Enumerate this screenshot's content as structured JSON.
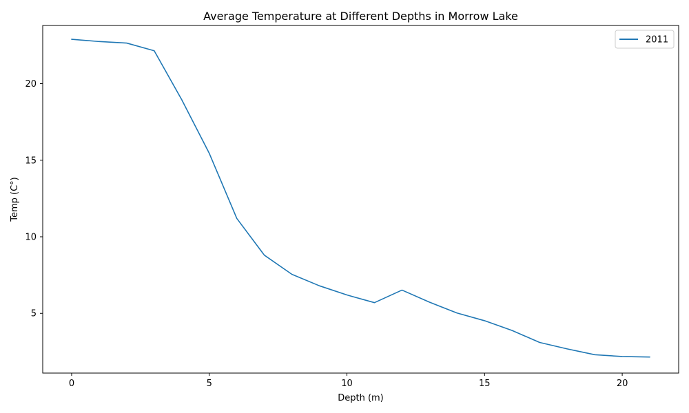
{
  "chart_data": {
    "type": "line",
    "title": "Average Temperature at Different Depths in Morrow Lake",
    "xlabel": "Depth (m)",
    "ylabel": "Temp (C°)",
    "xlim": [
      -1.05,
      22.05
    ],
    "ylim": [
      1.1,
      23.8
    ],
    "xticks": [
      0,
      5,
      10,
      15,
      20
    ],
    "yticks": [
      5,
      10,
      15,
      20
    ],
    "grid": false,
    "legend": "top-right",
    "series_color": "#1f77b4",
    "series": [
      {
        "name": "2011",
        "x": [
          0,
          1,
          2,
          3,
          4,
          5,
          6,
          7,
          8,
          9,
          10,
          11,
          12,
          13,
          14,
          15,
          16,
          17,
          18,
          19,
          20,
          21
        ],
        "values": [
          22.9,
          22.75,
          22.65,
          22.15,
          18.95,
          15.45,
          11.2,
          8.8,
          7.55,
          6.8,
          6.2,
          5.7,
          6.52,
          5.73,
          5.02,
          4.52,
          3.88,
          3.1,
          2.68,
          2.3,
          2.18,
          2.15
        ]
      }
    ]
  }
}
